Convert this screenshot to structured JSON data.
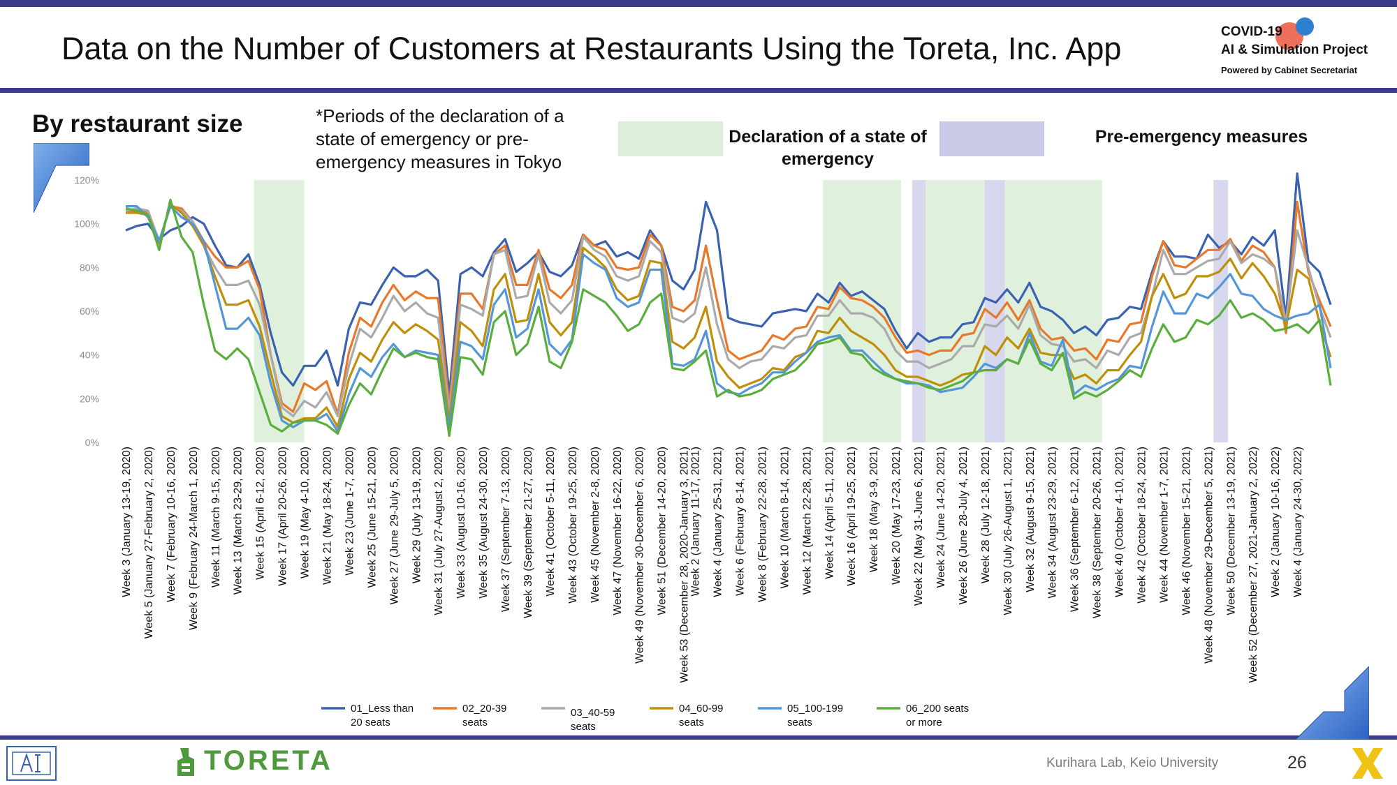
{
  "header": {
    "title": "Data on the Number of Customers at Restaurants Using the Toreta, Inc. App",
    "logo_line1": "COVID-19",
    "logo_line2": "AI & Simulation Project",
    "logo_line3": "Powered by Cabinet Secretariat"
  },
  "section_title": "By restaurant size",
  "note": "*Periods of the declaration of a state of emergency or pre-emergency measures in Tokyo",
  "period_legend": {
    "emergency_label": "Declaration of a state of emergency",
    "pre_emergency_label": "Pre-emergency measures",
    "emergency_color": "#dcefd8",
    "pre_emergency_color": "#c9c9e8"
  },
  "footer": {
    "brand": "TORETA",
    "credit": "Kurihara Lab, Keio University",
    "page_number": "26"
  },
  "chart_data": {
    "type": "line",
    "y_ticks": [
      "0%",
      "20%",
      "40%",
      "60%",
      "80%",
      "100%",
      "120%"
    ],
    "ylim": [
      0,
      120
    ],
    "grid": false,
    "legend_position": "bottom",
    "x_tick_labels": [
      "Week 3 (January 13-19, 2020)",
      "Week 5 (January 27-February 2, 2020)",
      "Week 7 (February 10-16, 2020)",
      "Week 9 (February 24-March 1, 2020)",
      "Week 11 (March 9-15, 2020)",
      "Week 13 (March 23-29, 2020)",
      "Week 15 (April 6-12, 2020)",
      "Week 17 (April 20-26, 2020)",
      "Week 19 (May 4-10, 2020)",
      "Week 21 (May 18-24, 2020)",
      "Week 23 (June 1-7, 2020)",
      "Week 25 (June 15-21, 2020)",
      "Week 27 (June 29-July 5, 2020)",
      "Week 29 (July 13-19, 2020)",
      "Week 31 (July 27-August 2, 2020)",
      "Week 33 (August 10-16, 2020)",
      "Week 35 (August 24-30, 2020)",
      "Week 37 (September 7-13, 2020)",
      "Week 39 (September 21-27, 2020)",
      "Week 41 (October 5-11, 2020)",
      "Week 43 (October 19-25, 2020)",
      "Week 45 (November 2-8, 2020)",
      "Week 47 (November 16-22, 2020)",
      "Week 49 (November 30-December 6, 2020)",
      "Week 51 (December 14-20, 2020)",
      "Week 53 (December 28, 2020-January 3, 2021)",
      "Week 2 (January 11-17, 2021)",
      "Week 4 (January 25-31, 2021)",
      "Week 6 (February 8-14, 2021)",
      "Week 8 (February 22-28, 2021)",
      "Week 10 (March 8-14, 2021)",
      "Week 12 (March 22-28, 2021)",
      "Week 14 (April 5-11, 2021)",
      "Week 16 (April 19-25, 2021)",
      "Week 18 (May 3-9, 2021)",
      "Week 20 (May 17-23, 2021)",
      "Week 22 (May 31-June 6, 2021)",
      "Week 24 (June 14-20, 2021)",
      "Week 26 (June 28-July 4, 2021)",
      "Week 28 (July 12-18, 2021)",
      "Week 30 (July 26-August 1, 2021)",
      "Week 32 (August 9-15, 2021)",
      "Week 34 (August 23-29, 2021)",
      "Week 36 (September 6-12, 2021)",
      "Week 38 (September 20-26, 2021)",
      "Week 40 (October 4-10, 2021)",
      "Week 42 (October 18-24, 2021)",
      "Week 44 (November 1-7, 2021)",
      "Week 46 (November 15-21, 2021)",
      "Week 48 (November 29-December 5, 2021)",
      "Week 50 (December 13-19, 2021)",
      "Week 52 (December 27, 2021-January 2, 2022)",
      "Week 2 (January 10-16, 2022)",
      "Week 4 (January 24-30, 2022)"
    ],
    "shaded_periods": [
      {
        "kind": "emergency",
        "start": 11.5,
        "end": 16
      },
      {
        "kind": "emergency",
        "start": 62.5,
        "end": 69.5
      },
      {
        "kind": "pre",
        "start": 70.5,
        "end": 71.7
      },
      {
        "kind": "emergency",
        "start": 71.7,
        "end": 77
      },
      {
        "kind": "pre",
        "start": 77,
        "end": 78.8
      },
      {
        "kind": "emergency",
        "start": 78.8,
        "end": 87.5
      },
      {
        "kind": "pre",
        "start": 97.5,
        "end": 98.8
      }
    ],
    "series": [
      {
        "name": "01_Less  than 20 seats",
        "color": "#3a62b0",
        "values": [
          97,
          99,
          100,
          93,
          97,
          99,
          103,
          100,
          90,
          81,
          80,
          86,
          72,
          50,
          32,
          26,
          35,
          35,
          42,
          26,
          52,
          64,
          63,
          72,
          80,
          76,
          76,
          79,
          74,
          22,
          77,
          80,
          76,
          87,
          93,
          78,
          82,
          87,
          78,
          76,
          81,
          95,
          90,
          92,
          85,
          87,
          84,
          97,
          90,
          74,
          70,
          79,
          110,
          97,
          57,
          55,
          54,
          53,
          59,
          60,
          61,
          60,
          68,
          64,
          73,
          67,
          69,
          65,
          61,
          51,
          43,
          50,
          46,
          48,
          48,
          54,
          55,
          66,
          64,
          70,
          64,
          73,
          62,
          60,
          56,
          50,
          53,
          49,
          56,
          57,
          62,
          61,
          78,
          92,
          85,
          85,
          84,
          95,
          89,
          92,
          86,
          94,
          90,
          97,
          57,
          123,
          83,
          78,
          63
        ]
      },
      {
        "name": "02_20-39 seats",
        "color": "#e8782a",
        "values": [
          105,
          106,
          105,
          92,
          108,
          107,
          101,
          92,
          85,
          80,
          80,
          83,
          70,
          40,
          18,
          14,
          27,
          24,
          28,
          13,
          41,
          57,
          53,
          64,
          72,
          65,
          69,
          66,
          66,
          17,
          68,
          68,
          61,
          86,
          90,
          72,
          72,
          88,
          70,
          66,
          72,
          95,
          90,
          88,
          80,
          79,
          80,
          95,
          90,
          62,
          60,
          65,
          90,
          65,
          42,
          38,
          40,
          42,
          49,
          47,
          52,
          53,
          62,
          61,
          71,
          66,
          65,
          62,
          57,
          48,
          41,
          42,
          40,
          42,
          42,
          49,
          50,
          61,
          57,
          64,
          56,
          65,
          52,
          47,
          48,
          42,
          43,
          38,
          47,
          46,
          54,
          55,
          76,
          92,
          81,
          80,
          84,
          88,
          88,
          93,
          83,
          90,
          87,
          80,
          50,
          110,
          78,
          65,
          53
        ]
      },
      {
        "name": "03_40-59 seats",
        "color": "#aaaaaa",
        "values": [
          106,
          107,
          106,
          92,
          108,
          106,
          101,
          90,
          80,
          72,
          72,
          74,
          63,
          40,
          16,
          12,
          19,
          16,
          23,
          12,
          35,
          52,
          48,
          57,
          67,
          60,
          64,
          59,
          57,
          14,
          63,
          61,
          58,
          86,
          88,
          66,
          67,
          86,
          64,
          59,
          65,
          94,
          88,
          85,
          76,
          74,
          76,
          92,
          87,
          57,
          55,
          59,
          80,
          54,
          38,
          34,
          37,
          38,
          44,
          43,
          48,
          49,
          58,
          58,
          65,
          59,
          59,
          57,
          52,
          42,
          37,
          37,
          34,
          36,
          38,
          44,
          44,
          54,
          53,
          58,
          52,
          63,
          49,
          45,
          44,
          37,
          38,
          34,
          42,
          40,
          48,
          50,
          67,
          88,
          77,
          77,
          80,
          83,
          84,
          92,
          82,
          86,
          84,
          80,
          55,
          97,
          80,
          62,
          48
        ]
      },
      {
        "name": "04_60-99 seats",
        "color": "#bf8f0a",
        "values": [
          105,
          105,
          104,
          91,
          109,
          105,
          99,
          90,
          76,
          63,
          63,
          65,
          53,
          32,
          12,
          9,
          11,
          11,
          16,
          7,
          29,
          41,
          37,
          47,
          55,
          50,
          54,
          51,
          47,
          10,
          55,
          51,
          44,
          70,
          77,
          55,
          56,
          77,
          55,
          49,
          55,
          89,
          85,
          80,
          70,
          65,
          67,
          83,
          82,
          46,
          43,
          48,
          62,
          37,
          30,
          25,
          27,
          29,
          34,
          33,
          39,
          41,
          51,
          50,
          57,
          51,
          48,
          45,
          40,
          33,
          30,
          30,
          28,
          26,
          28,
          31,
          32,
          44,
          40,
          48,
          43,
          52,
          41,
          40,
          40,
          29,
          31,
          27,
          33,
          33,
          40,
          46,
          67,
          77,
          66,
          68,
          76,
          76,
          78,
          84,
          75,
          82,
          76,
          68,
          53,
          79,
          75,
          55,
          39
        ]
      },
      {
        "name": "05_100-199 seats",
        "color": "#5596d8",
        "values": [
          108,
          108,
          103,
          92,
          108,
          103,
          100,
          92,
          72,
          52,
          52,
          57,
          49,
          27,
          10,
          7,
          10,
          10,
          13,
          5,
          22,
          34,
          30,
          39,
          45,
          39,
          42,
          41,
          40,
          7,
          46,
          44,
          38,
          63,
          70,
          48,
          52,
          70,
          45,
          40,
          47,
          86,
          82,
          79,
          66,
          62,
          64,
          79,
          79,
          36,
          35,
          38,
          51,
          27,
          23,
          22,
          25,
          27,
          32,
          32,
          37,
          41,
          46,
          48,
          49,
          42,
          42,
          37,
          32,
          29,
          27,
          27,
          26,
          23,
          24,
          25,
          30,
          36,
          34,
          38,
          36,
          50,
          37,
          35,
          47,
          22,
          26,
          24,
          27,
          29,
          35,
          34,
          53,
          69,
          59,
          59,
          68,
          66,
          71,
          77,
          68,
          67,
          61,
          58,
          56,
          58,
          59,
          63,
          34
        ]
      },
      {
        "name": "06_200 seats or more",
        "color": "#5aae3e",
        "values": [
          107,
          106,
          104,
          88,
          111,
          94,
          87,
          63,
          42,
          38,
          43,
          38,
          23,
          8,
          5,
          9,
          10,
          10,
          8,
          4,
          17,
          27,
          22,
          33,
          43,
          39,
          41,
          39,
          38,
          3,
          39,
          38,
          31,
          55,
          60,
          40,
          45,
          62,
          37,
          34,
          46,
          70,
          67,
          64,
          58,
          51,
          54,
          64,
          68,
          34,
          33,
          37,
          42,
          21,
          24,
          21,
          22,
          24,
          29,
          31,
          33,
          38,
          45,
          46,
          48,
          41,
          40,
          34,
          31,
          29,
          28,
          27,
          25,
          24,
          26,
          28,
          32,
          33,
          33,
          38,
          36,
          47,
          36,
          33,
          41,
          20,
          23,
          21,
          24,
          28,
          33,
          30,
          43,
          54,
          46,
          48,
          56,
          54,
          58,
          65,
          57,
          59,
          56,
          51,
          52,
          54,
          50,
          56,
          26
        ]
      }
    ]
  }
}
